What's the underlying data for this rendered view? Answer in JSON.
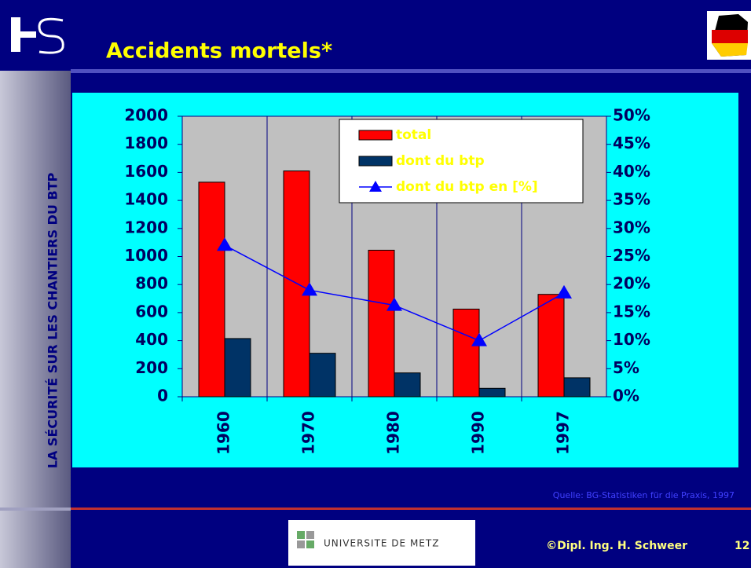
{
  "slide": {
    "title": "Accidents mortels*",
    "side_label": "LA SÉCURITÉ SUR LES CHANTIERS DU BTP",
    "source": "Quelle: BG-Statistiken für die Praxis, 1997",
    "university": "UNIVERSITE DE METZ",
    "author": "©Dipl. Ing. H. Schweer",
    "page": "12"
  },
  "chart_data": {
    "type": "bar",
    "categories": [
      "1960",
      "1970",
      "1980",
      "1990",
      "1997"
    ],
    "series": [
      {
        "name": "total",
        "color": "#ff0000",
        "values": [
          1530,
          1610,
          1045,
          625,
          730
        ]
      },
      {
        "name": "dont du btp",
        "color": "#003366",
        "values": [
          415,
          310,
          170,
          60,
          135
        ]
      },
      {
        "name": "dont du btp en [%]",
        "color": "#0000ff",
        "type": "line",
        "axis": "y2",
        "values": [
          27,
          19,
          16.3,
          10,
          18.5
        ]
      }
    ],
    "ylim": [
      0,
      2000
    ],
    "yticks": [
      0,
      200,
      400,
      600,
      800,
      1000,
      1200,
      1400,
      1600,
      1800,
      2000
    ],
    "y2lim": [
      0,
      50
    ],
    "y2ticks": [
      {
        "value": 0,
        "label": "0%"
      },
      {
        "value": 5,
        "label": "5%"
      },
      {
        "value": 10,
        "label": "10%"
      },
      {
        "value": 15,
        "label": "15%"
      },
      {
        "value": 20,
        "label": "20%"
      },
      {
        "value": 25,
        "label": "25%"
      },
      {
        "value": 30,
        "label": "30%"
      },
      {
        "value": 35,
        "label": "35%"
      },
      {
        "value": 40,
        "label": "40%"
      },
      {
        "value": 45,
        "label": "45%"
      },
      {
        "value": 50,
        "label": "50%"
      }
    ],
    "grid": false,
    "legend": "top-right"
  }
}
